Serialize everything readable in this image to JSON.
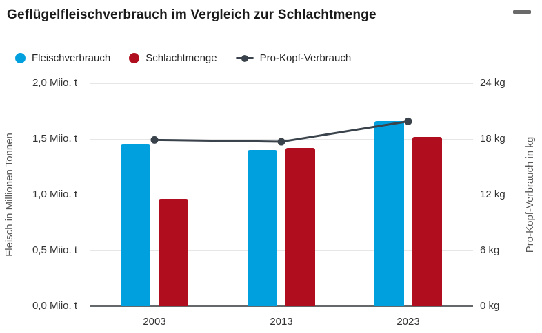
{
  "header": {
    "title": "Geflügelfleischverbrauch im Vergleich zur Schlachtmenge"
  },
  "menu": {
    "icon": "hamburger-icon"
  },
  "legend": {
    "items": [
      {
        "label": "Fleischverbrauch",
        "marker": "circle",
        "color": "#00a0de"
      },
      {
        "label": "Schlachtmenge",
        "marker": "circle",
        "color": "#b00d1e"
      },
      {
        "label": "Pro-Kopf-Verbrauch",
        "marker": "line-circle",
        "color": "#3a434b"
      }
    ]
  },
  "chart_data": {
    "type": "bar",
    "subtype": "grouped-bars-with-line",
    "title": "Geflügelfleischverbrauch im Vergleich zur Schlachtmenge",
    "categories": [
      "2003",
      "2013",
      "2023"
    ],
    "series": [
      {
        "name": "Fleischverbrauch",
        "type": "bar",
        "axis": "left",
        "color": "#00a0de",
        "values": [
          1.45,
          1.4,
          1.66
        ]
      },
      {
        "name": "Schlachtmenge",
        "type": "bar",
        "axis": "left",
        "color": "#b00d1e",
        "values": [
          0.96,
          1.42,
          1.52
        ]
      },
      {
        "name": "Pro-Kopf-Verbrauch",
        "type": "line",
        "axis": "right",
        "color": "#3a434b",
        "values": [
          17.9,
          17.7,
          19.9
        ]
      }
    ],
    "axes": {
      "left": {
        "label": "Fleisch in Millionen Tonnen",
        "range": [
          0,
          2
        ],
        "tick_step": 0.5,
        "tick_labels": [
          "2,0 Miio. t",
          "1,5 Miio. t",
          "1,0 Miio. t",
          "0,5 Miio. t",
          "0,0 Miio. t"
        ]
      },
      "right": {
        "label": "Pro-Kopf-Verbrauch in kg",
        "range": [
          0,
          24
        ],
        "tick_step": 6,
        "tick_labels": [
          "24 kg",
          "18 kg",
          "12 kg",
          "6 kg",
          "0 kg"
        ]
      }
    },
    "grid": true,
    "legend_position": "top-left"
  },
  "colors": {
    "bar_blue": "#00a0de",
    "bar_red": "#b00d1e",
    "line_dark": "#3a434b",
    "gridline": "#e6e6e6",
    "axis_line": "#65686b",
    "title_text": "#1a1a1a",
    "tick_text": "#333333",
    "axis_title_text": "#595959",
    "menu_icon": "#6a6a6a"
  }
}
